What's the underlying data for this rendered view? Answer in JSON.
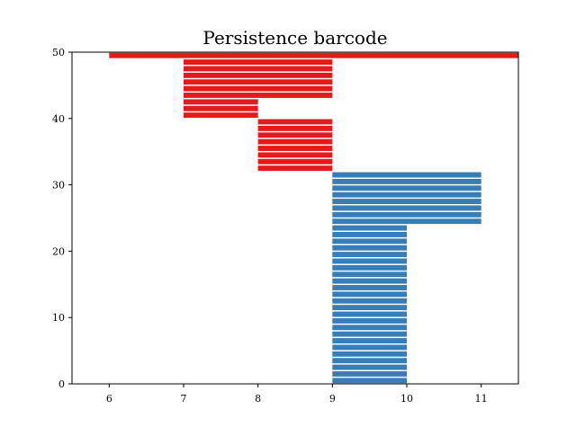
{
  "chart_data": {
    "type": "bar",
    "orientation": "horizontal",
    "title": "Persistence barcode",
    "xlabel": "",
    "ylabel": "",
    "xlim": [
      5.5,
      11.5
    ],
    "ylim": [
      0,
      50
    ],
    "xticks": [
      6,
      7,
      8,
      9,
      10,
      11
    ],
    "yticks": [
      0,
      10,
      20,
      30,
      40,
      50
    ],
    "grid": false,
    "colors": {
      "h0": "#377eb8",
      "h1": "#e41a1c"
    },
    "series": [
      {
        "group": "h0",
        "color": "#377eb8",
        "bars": [
          {
            "y": 0,
            "start": 9,
            "end": 10
          },
          {
            "y": 1,
            "start": 9,
            "end": 10
          },
          {
            "y": 2,
            "start": 9,
            "end": 10
          },
          {
            "y": 3,
            "start": 9,
            "end": 10
          },
          {
            "y": 4,
            "start": 9,
            "end": 10
          },
          {
            "y": 5,
            "start": 9,
            "end": 10
          },
          {
            "y": 6,
            "start": 9,
            "end": 10
          },
          {
            "y": 7,
            "start": 9,
            "end": 10
          },
          {
            "y": 8,
            "start": 9,
            "end": 10
          },
          {
            "y": 9,
            "start": 9,
            "end": 10
          },
          {
            "y": 10,
            "start": 9,
            "end": 10
          },
          {
            "y": 11,
            "start": 9,
            "end": 10
          },
          {
            "y": 12,
            "start": 9,
            "end": 10
          },
          {
            "y": 13,
            "start": 9,
            "end": 10
          },
          {
            "y": 14,
            "start": 9,
            "end": 10
          },
          {
            "y": 15,
            "start": 9,
            "end": 10
          },
          {
            "y": 16,
            "start": 9,
            "end": 10
          },
          {
            "y": 17,
            "start": 9,
            "end": 10
          },
          {
            "y": 18,
            "start": 9,
            "end": 10
          },
          {
            "y": 19,
            "start": 9,
            "end": 10
          },
          {
            "y": 20,
            "start": 9,
            "end": 10
          },
          {
            "y": 21,
            "start": 9,
            "end": 10
          },
          {
            "y": 22,
            "start": 9,
            "end": 10
          },
          {
            "y": 23,
            "start": 9,
            "end": 10
          },
          {
            "y": 24,
            "start": 9,
            "end": 11
          },
          {
            "y": 25,
            "start": 9,
            "end": 11
          },
          {
            "y": 26,
            "start": 9,
            "end": 11
          },
          {
            "y": 27,
            "start": 9,
            "end": 11
          },
          {
            "y": 28,
            "start": 9,
            "end": 11
          },
          {
            "y": 29,
            "start": 9,
            "end": 11
          },
          {
            "y": 30,
            "start": 9,
            "end": 11
          },
          {
            "y": 31,
            "start": 9,
            "end": 11
          }
        ]
      },
      {
        "group": "h1",
        "color": "#e41a1c",
        "bars": [
          {
            "y": 32,
            "start": 8,
            "end": 9
          },
          {
            "y": 33,
            "start": 8,
            "end": 9
          },
          {
            "y": 34,
            "start": 8,
            "end": 9
          },
          {
            "y": 35,
            "start": 8,
            "end": 9
          },
          {
            "y": 36,
            "start": 8,
            "end": 9
          },
          {
            "y": 37,
            "start": 8,
            "end": 9
          },
          {
            "y": 38,
            "start": 8,
            "end": 9
          },
          {
            "y": 39,
            "start": 8,
            "end": 9
          },
          {
            "y": 40,
            "start": 7,
            "end": 8
          },
          {
            "y": 41,
            "start": 7,
            "end": 8
          },
          {
            "y": 42,
            "start": 7,
            "end": 8
          },
          {
            "y": 43,
            "start": 7,
            "end": 9
          },
          {
            "y": 44,
            "start": 7,
            "end": 9
          },
          {
            "y": 45,
            "start": 7,
            "end": 9
          },
          {
            "y": 46,
            "start": 7,
            "end": 9
          },
          {
            "y": 47,
            "start": 7,
            "end": 9
          },
          {
            "y": 48,
            "start": 7,
            "end": 9
          },
          {
            "y": 49,
            "start": 6,
            "end": 11.5
          }
        ]
      }
    ]
  }
}
